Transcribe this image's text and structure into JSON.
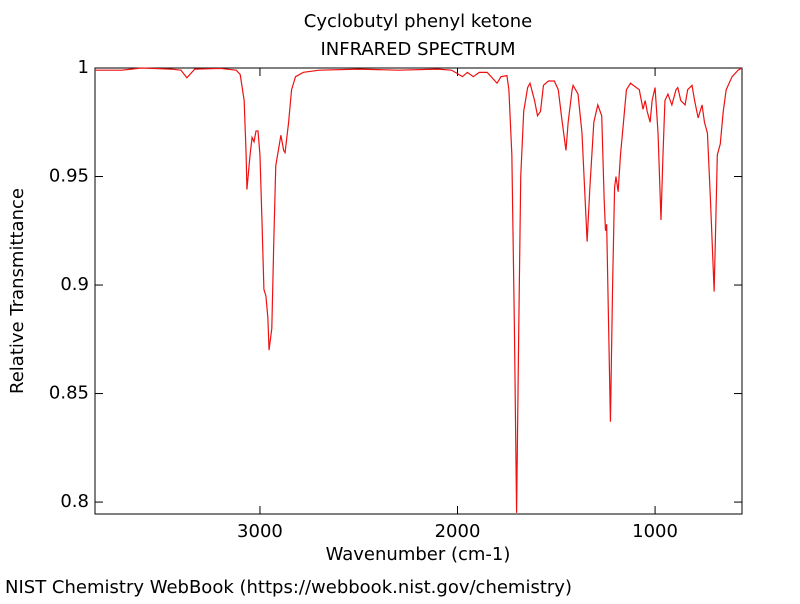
{
  "chart_data": {
    "type": "line",
    "title": "Cyclobutyl phenyl ketone",
    "subtitle": "INFRARED SPECTRUM",
    "x_label": "Wavenumber (cm-1)",
    "y_label": "Relative Transmittance",
    "footer": "NIST Chemistry WebBook (https://webbook.nist.gov/chemistry)",
    "xlim": [
      3835,
      560
    ],
    "ylim": [
      0.7945,
      1.0
    ],
    "xticks": [
      3000,
      2000,
      1000
    ],
    "yticks": [
      0.8,
      0.85,
      0.9,
      0.95,
      1
    ],
    "x": [
      3835,
      3700,
      3600,
      3450,
      3400,
      3370,
      3330,
      3200,
      3120,
      3100,
      3080,
      3070,
      3066,
      3050,
      3040,
      3030,
      3020,
      3010,
      3000,
      2990,
      2980,
      2970,
      2960,
      2954,
      2940,
      2930,
      2920,
      2894,
      2880,
      2873,
      2855,
      2840,
      2820,
      2780,
      2700,
      2500,
      2300,
      2100,
      2030,
      1975,
      1950,
      1920,
      1890,
      1850,
      1800,
      1780,
      1750,
      1740,
      1725,
      1712,
      1701,
      1690,
      1680,
      1665,
      1645,
      1633,
      1610,
      1595,
      1580,
      1565,
      1540,
      1510,
      1490,
      1470,
      1451,
      1440,
      1420,
      1415,
      1390,
      1370,
      1344,
      1330,
      1310,
      1290,
      1270,
      1258,
      1251,
      1245,
      1235,
      1226,
      1215,
      1205,
      1198,
      1187,
      1175,
      1160,
      1145,
      1124,
      1110,
      1080,
      1061,
      1050,
      1040,
      1025,
      1015,
      1000,
      985,
      970,
      960,
      950,
      935,
      915,
      894,
      885,
      870,
      848,
      835,
      813,
      800,
      782,
      762,
      750,
      735,
      720,
      701,
      695,
      685,
      670,
      655,
      640,
      610,
      580,
      560
    ],
    "series": [
      {
        "name": "Cyclobutyl phenyl ketone",
        "color": "#ee1111",
        "values": [
          0.999,
          0.999,
          1.0,
          0.9995,
          0.999,
          0.9955,
          0.9995,
          0.9998,
          0.999,
          0.997,
          0.985,
          0.96,
          0.944,
          0.96,
          0.968,
          0.966,
          0.971,
          0.971,
          0.96,
          0.93,
          0.898,
          0.895,
          0.885,
          0.87,
          0.88,
          0.92,
          0.955,
          0.969,
          0.962,
          0.961,
          0.975,
          0.99,
          0.996,
          0.998,
          0.999,
          0.9995,
          0.999,
          0.9995,
          0.999,
          0.996,
          0.998,
          0.996,
          0.998,
          0.998,
          0.993,
          0.996,
          0.9965,
          0.99,
          0.96,
          0.88,
          0.795,
          0.88,
          0.95,
          0.98,
          0.991,
          0.993,
          0.985,
          0.978,
          0.98,
          0.992,
          0.994,
          0.994,
          0.99,
          0.975,
          0.962,
          0.975,
          0.99,
          0.992,
          0.988,
          0.97,
          0.92,
          0.945,
          0.975,
          0.983,
          0.978,
          0.94,
          0.925,
          0.928,
          0.88,
          0.837,
          0.9,
          0.945,
          0.95,
          0.943,
          0.96,
          0.975,
          0.99,
          0.993,
          0.992,
          0.99,
          0.981,
          0.985,
          0.98,
          0.975,
          0.985,
          0.991,
          0.97,
          0.93,
          0.96,
          0.985,
          0.988,
          0.983,
          0.99,
          0.991,
          0.985,
          0.983,
          0.99,
          0.992,
          0.985,
          0.977,
          0.983,
          0.975,
          0.97,
          0.94,
          0.897,
          0.92,
          0.96,
          0.965,
          0.98,
          0.99,
          0.996,
          0.999,
          1.0
        ]
      }
    ]
  }
}
